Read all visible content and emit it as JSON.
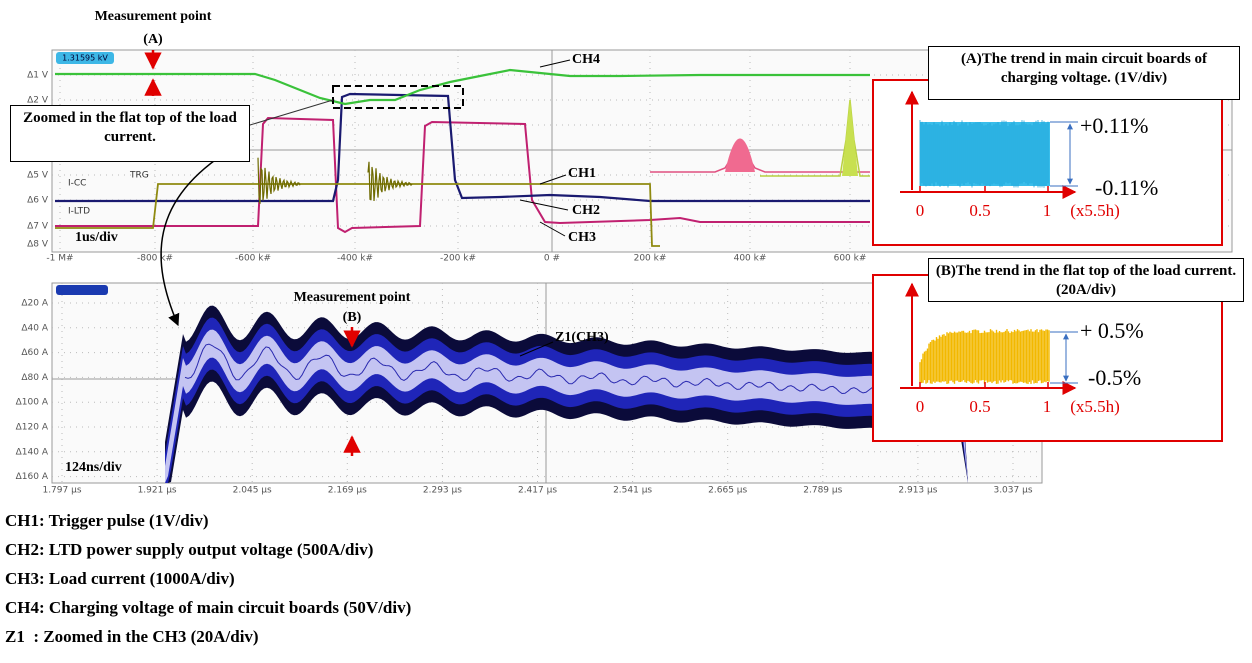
{
  "top_scope": {
    "measurement_label": "Measurement point",
    "point": "(A)",
    "readout": "1.31595 kV",
    "y_labels": [
      "Δ1 V",
      "Δ2 V",
      "Δ5 V",
      "Δ6 V",
      "Δ7 V",
      "Δ8 V"
    ],
    "x_labels": [
      "-1 M#",
      "-800 k#",
      "-600 k#",
      "-400 k#",
      "-200 k#",
      "0 #",
      "200 k#",
      "400 k#",
      "600 k#"
    ],
    "channels": {
      "ch4": "CH4",
      "ch1": "CH1",
      "ch2": "CH2",
      "ch3": "CH3"
    },
    "markers": [
      "TRG",
      "I-CC",
      "I-LTD"
    ],
    "timebase": "1us/div",
    "callout": "Zoomed in the flat top of the load current."
  },
  "inset_a": {
    "title": "(A)The trend in main circuit boards of charging voltage. (1V/div)",
    "upper": "+0.11%",
    "lower": "-0.11%",
    "x_labels": [
      "0",
      "0.5",
      "1",
      "(x5.5h)"
    ]
  },
  "bottom_scope": {
    "measurement_label": "Measurement point",
    "point": "(B)",
    "trace": "Z1(CH3)",
    "y_labels": [
      "Δ20 A",
      "Δ40 A",
      "Δ60 A",
      "Δ80 A",
      "Δ100 A",
      "Δ120 A",
      "Δ140 A",
      "Δ160 A"
    ],
    "x_labels": [
      "1.797 µs",
      "1.921 µs",
      "2.045 µs",
      "2.169 µs",
      "2.293 µs",
      "2.417 µs",
      "2.541 µs",
      "2.665 µs",
      "2.789 µs",
      "2.913 µs",
      "3.037 µs"
    ],
    "timebase": "124ns/div"
  },
  "inset_b": {
    "title": "(B)The trend in the flat top of the load current.(20A/div)",
    "upper": "+ 0.5%",
    "lower": "-0.5%",
    "x_labels": [
      "0",
      "0.5",
      "1",
      "(x5.5h)"
    ]
  },
  "caption": [
    "CH1: Trigger pulse (1V/div)",
    "CH2: LTD power supply output voltage (500A/div)",
    "CH3: Load current (1000A/div)",
    "CH4: Charging voltage of main circuit boards (50V/div)",
    "Z1  : Zoomed in the CH3 (20A/div)"
  ]
}
